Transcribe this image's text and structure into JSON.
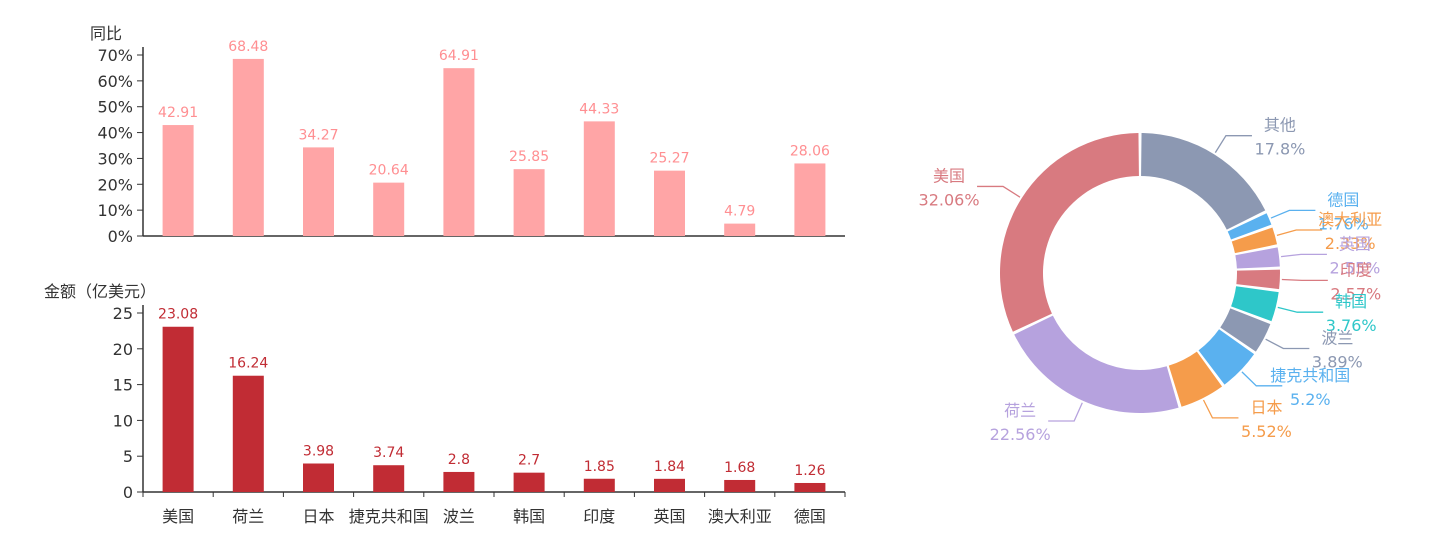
{
  "chart_data": [
    {
      "type": "bar",
      "ylabel": "同比",
      "categories": [
        "美国",
        "荷兰",
        "日本",
        "捷克共和国",
        "波兰",
        "韩国",
        "印度",
        "英国",
        "澳大利亚",
        "德国"
      ],
      "values": [
        42.91,
        68.48,
        34.27,
        20.64,
        64.91,
        25.85,
        44.33,
        25.27,
        4.79,
        28.06
      ],
      "data_labels": [
        "42.91",
        "68.48",
        "34.27",
        "20.64",
        "64.91",
        "25.85",
        "44.33",
        "25.27",
        "4.79",
        "28.06"
      ],
      "ylim": [
        0,
        70
      ],
      "yticks": [
        0,
        10,
        20,
        30,
        40,
        50,
        60,
        70
      ],
      "ytick_labels": [
        "0%",
        "10%",
        "20%",
        "30%",
        "40%",
        "50%",
        "60%",
        "70%"
      ],
      "grid": false,
      "color": "#ffa5a6"
    },
    {
      "type": "bar",
      "ylabel": "金额（亿美元）",
      "categories": [
        "美国",
        "荷兰",
        "日本",
        "捷克共和国",
        "波兰",
        "韩国",
        "印度",
        "英国",
        "澳大利亚",
        "德国"
      ],
      "values": [
        23.08,
        16.24,
        3.98,
        3.74,
        2.8,
        2.7,
        1.85,
        1.84,
        1.68,
        1.26
      ],
      "data_labels": [
        "23.08",
        "16.24",
        "3.98",
        "3.74",
        "2.8",
        "2.7",
        "1.85",
        "1.84",
        "1.68",
        "1.26"
      ],
      "ylim": [
        0,
        25
      ],
      "yticks": [
        0,
        5,
        10,
        15,
        20,
        25
      ],
      "ytick_labels": [
        "0",
        "5",
        "10",
        "15",
        "20",
        "25"
      ],
      "grid": false,
      "color": "#c12c34"
    },
    {
      "type": "pie",
      "donut": true,
      "slices": [
        {
          "name": "其他",
          "value": 17.8,
          "label": "17.8%",
          "color": "#8c98b2"
        },
        {
          "name": "德国",
          "value": 1.76,
          "label": "1.76%",
          "color": "#5ab1ef"
        },
        {
          "name": "澳大利亚",
          "value": 2.33,
          "label": "2.33%",
          "color": "#f59c4b"
        },
        {
          "name": "英国",
          "value": 2.55,
          "label": "2.55%",
          "color": "#b6a2de"
        },
        {
          "name": "印度",
          "value": 2.57,
          "label": "2.57%",
          "color": "#d87a80"
        },
        {
          "name": "韩国",
          "value": 3.76,
          "label": "3.76%",
          "color": "#2ec7c9"
        },
        {
          "name": "波兰",
          "value": 3.89,
          "label": "3.89%",
          "color": "#8c98b2"
        },
        {
          "name": "捷克共和国",
          "value": 5.2,
          "label": "5.2%",
          "color": "#5ab1ef"
        },
        {
          "name": "日本",
          "value": 5.52,
          "label": "5.52%",
          "color": "#f59c4b"
        },
        {
          "name": "荷兰",
          "value": 22.56,
          "label": "22.56%",
          "color": "#b6a2de"
        },
        {
          "name": "美国",
          "value": 32.06,
          "label": "32.06%",
          "color": "#d87a80"
        }
      ]
    }
  ]
}
